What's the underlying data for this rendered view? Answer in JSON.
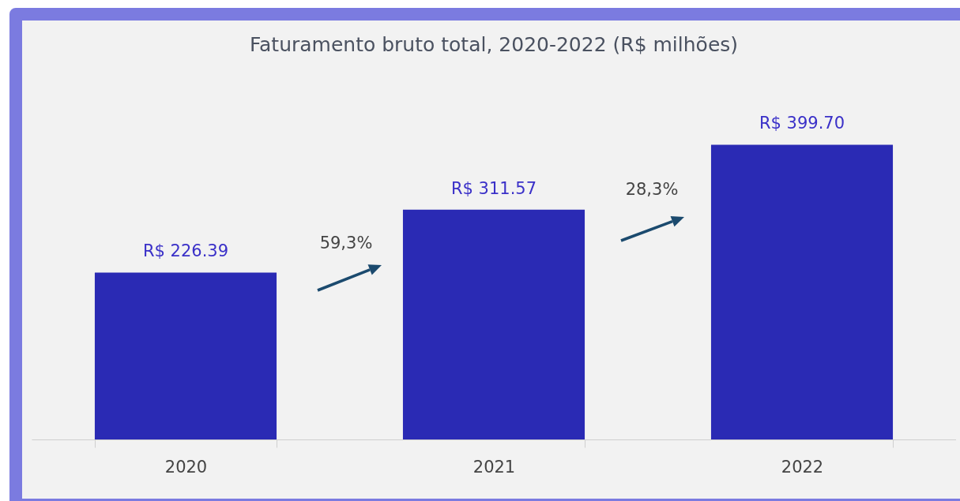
{
  "chart_data": {
    "type": "bar",
    "title": "Faturamento bruto total, 2020-2022 (R$ milhões)",
    "categories": [
      "2020",
      "2021",
      "2022"
    ],
    "values": [
      226.39,
      311.57,
      399.7
    ],
    "value_labels": [
      "R$ 226.39",
      "R$ 311.57",
      "R$ 399.70"
    ],
    "color": "#2a2ab4",
    "annotations": [
      "59,3%",
      "28,3%"
    ]
  }
}
